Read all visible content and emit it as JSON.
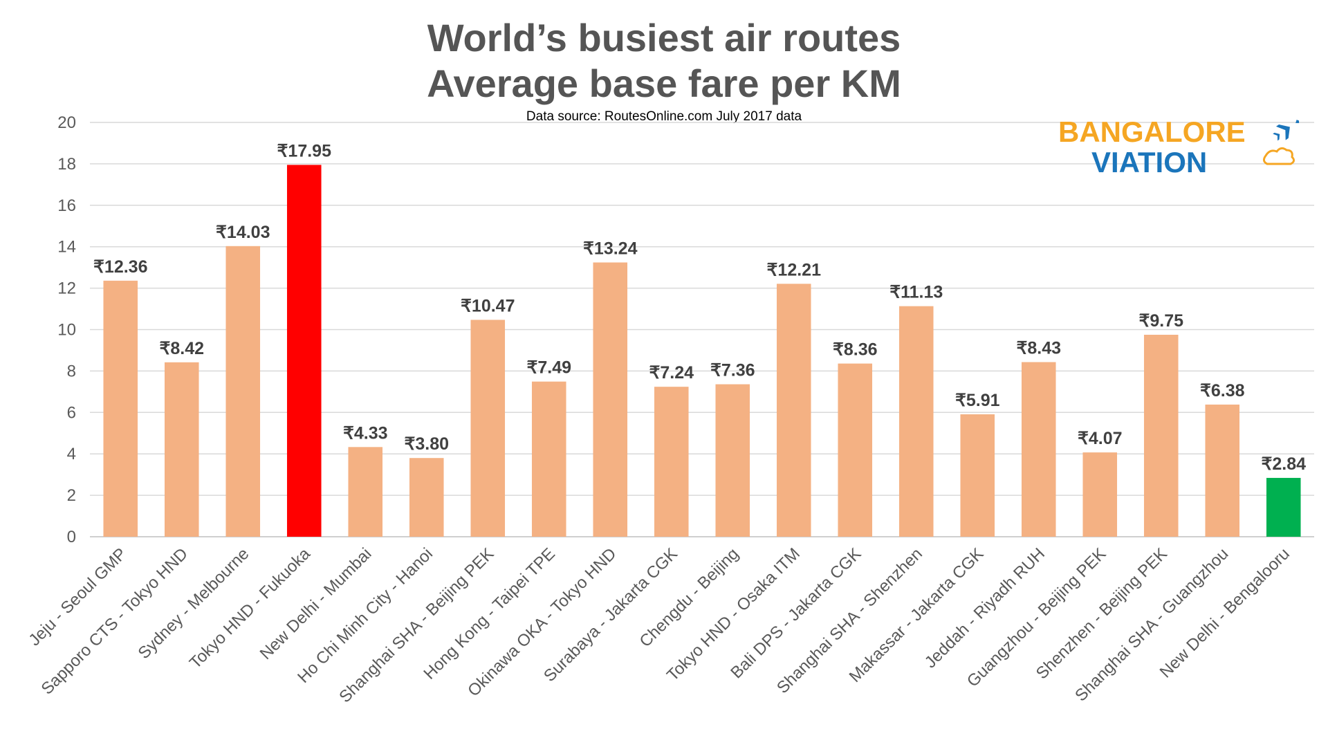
{
  "chart_data": {
    "type": "bar",
    "title": "World’s busiest air routes",
    "subtitle": "Average base fare per KM",
    "source": "Data source: RoutesOnline.com July 2017 data",
    "xlabel": "",
    "ylabel": "",
    "ylim": [
      0,
      20
    ],
    "yticks": [
      0,
      2,
      4,
      6,
      8,
      10,
      12,
      14,
      16,
      18,
      20
    ],
    "grid": true,
    "legend": "none",
    "categories": [
      "Jeju - Seoul GMP",
      "Sapporo CTS - Tokyo HND",
      "Sydney - Melbourne",
      "Tokyo HND - Fukuoka",
      "New Delhi - Mumbai",
      "Ho Chi Minh City - Hanoi",
      "Shanghai SHA - Beijing PEK",
      "Hong Kong - Taipei TPE",
      "Okinawa OKA - Tokyo HND",
      "Surabaya - Jakarta CGK",
      "Chengdu - Beijing",
      "Tokyo HND - Osaka ITM",
      "Bali DPS - Jakarta CGK",
      "Shanghai SHA - Shenzhen",
      "Makassar - Jakarta CGK",
      "Jeddah - Riyadh RUH",
      "Guangzhou - Beijing PEK",
      "Shenzhen - Beijing PEK",
      "Shanghai SHA - Guangzhou",
      "New Delhi - Bengalooru"
    ],
    "values": [
      12.36,
      8.42,
      14.03,
      17.95,
      4.33,
      3.8,
      10.47,
      7.49,
      13.24,
      7.24,
      7.36,
      12.21,
      8.36,
      11.13,
      5.91,
      8.43,
      4.07,
      9.75,
      6.38,
      2.84
    ],
    "data_labels": [
      "₹12.36",
      "₹8.42",
      "₹14.03",
      "₹17.95",
      "₹4.33",
      "₹3.80",
      "₹10.47",
      "₹7.49",
      "₹13.24",
      "₹7.24",
      "₹7.36",
      "₹12.21",
      "₹8.36",
      "₹11.13",
      "₹5.91",
      "₹8.43",
      "₹4.07",
      "₹9.75",
      "₹6.38",
      "₹2.84"
    ],
    "colors": {
      "default": "#f4b183",
      "highlight_max": "#ff0000",
      "highlight_min": "#00b050",
      "grid": "#d9d9d9",
      "axis_text": "#595959",
      "label_text": "#404040"
    },
    "bar_colors": [
      "default",
      "default",
      "default",
      "highlight_max",
      "default",
      "default",
      "default",
      "default",
      "default",
      "default",
      "default",
      "default",
      "default",
      "default",
      "default",
      "default",
      "default",
      "default",
      "default",
      "highlight_min"
    ]
  },
  "logo": {
    "line1": "BANGALORE",
    "line2": "VIATION",
    "colors": {
      "orange": "#f5a623",
      "blue": "#1b75bb"
    },
    "icon": "airplane-icon"
  }
}
